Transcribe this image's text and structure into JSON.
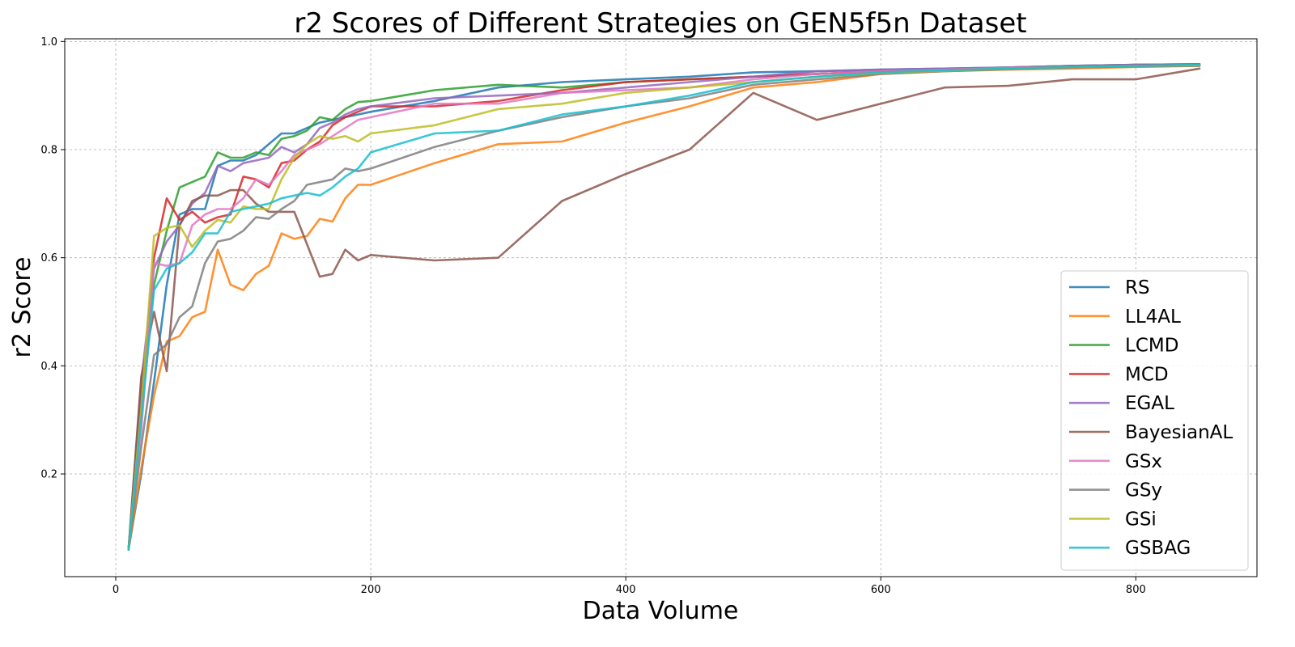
{
  "chart_data": {
    "type": "line",
    "title": "r2 Scores of Different Strategies on GEN5f5n Dataset",
    "xlabel": "Data Volume",
    "ylabel": "r2 Score",
    "xlim": [
      -40,
      895
    ],
    "ylim": [
      0.01,
      1.005
    ],
    "xticks": [
      0,
      200,
      400,
      600,
      800
    ],
    "yticks": [
      0.2,
      0.4,
      0.6,
      0.8,
      1.0
    ],
    "xtick_labels": [
      "0",
      "200",
      "400",
      "600",
      "800"
    ],
    "ytick_labels": [
      "0.2",
      "0.4",
      "0.6",
      "0.8",
      "1.0"
    ],
    "grid": true,
    "legend_position": "bottom-right",
    "x": [
      10,
      20,
      30,
      40,
      50,
      60,
      70,
      80,
      90,
      100,
      110,
      120,
      130,
      140,
      150,
      160,
      170,
      180,
      190,
      200,
      250,
      300,
      350,
      400,
      450,
      500,
      550,
      600,
      650,
      700,
      750,
      800,
      850
    ],
    "series": [
      {
        "name": "RS",
        "color": "#1f77b4",
        "values": [
          0.06,
          0.2,
          0.37,
          0.55,
          0.68,
          0.69,
          0.69,
          0.77,
          0.78,
          0.78,
          0.79,
          0.81,
          0.83,
          0.83,
          0.84,
          0.85,
          0.855,
          0.86,
          0.865,
          0.87,
          0.89,
          0.915,
          0.925,
          0.93,
          0.935,
          0.943,
          0.945,
          0.948,
          0.95,
          0.952,
          0.955,
          0.957,
          0.958
        ]
      },
      {
        "name": "LL4AL",
        "color": "#ff7f0e",
        "values": [
          0.06,
          0.21,
          0.345,
          0.445,
          0.455,
          0.49,
          0.5,
          0.615,
          0.55,
          0.54,
          0.57,
          0.585,
          0.645,
          0.635,
          0.64,
          0.672,
          0.667,
          0.71,
          0.735,
          0.735,
          0.775,
          0.81,
          0.815,
          0.85,
          0.88,
          0.915,
          0.925,
          0.94,
          0.945,
          0.948,
          0.95,
          0.953,
          0.955
        ]
      },
      {
        "name": "LCMD",
        "color": "#2ca02c",
        "values": [
          0.06,
          0.35,
          0.55,
          0.65,
          0.73,
          0.74,
          0.75,
          0.795,
          0.785,
          0.785,
          0.795,
          0.79,
          0.82,
          0.825,
          0.835,
          0.86,
          0.855,
          0.875,
          0.888,
          0.89,
          0.91,
          0.92,
          0.915,
          0.925,
          0.93,
          0.935,
          0.94,
          0.945,
          0.948,
          0.952,
          0.955,
          0.957,
          0.958
        ]
      },
      {
        "name": "MCD",
        "color": "#d62728",
        "values": [
          0.06,
          0.33,
          0.6,
          0.71,
          0.67,
          0.685,
          0.665,
          0.675,
          0.68,
          0.75,
          0.745,
          0.73,
          0.775,
          0.78,
          0.8,
          0.815,
          0.845,
          0.86,
          0.87,
          0.88,
          0.88,
          0.89,
          0.91,
          0.925,
          0.93,
          0.935,
          0.94,
          0.945,
          0.948,
          0.951,
          0.954,
          0.956,
          0.957
        ]
      },
      {
        "name": "EGAL",
        "color": "#9467bd",
        "values": [
          0.06,
          0.37,
          0.58,
          0.63,
          0.66,
          0.7,
          0.72,
          0.77,
          0.76,
          0.775,
          0.78,
          0.785,
          0.805,
          0.795,
          0.81,
          0.84,
          0.85,
          0.865,
          0.875,
          0.88,
          0.895,
          0.9,
          0.905,
          0.915,
          0.925,
          0.935,
          0.945,
          0.948,
          0.95,
          0.952,
          0.955,
          0.957,
          0.958
        ]
      },
      {
        "name": "BayesianAL",
        "color": "#8c564b",
        "values": [
          0.06,
          0.38,
          0.5,
          0.39,
          0.66,
          0.705,
          0.715,
          0.715,
          0.725,
          0.725,
          0.7,
          0.685,
          0.685,
          0.685,
          0.625,
          0.565,
          0.57,
          0.615,
          0.595,
          0.605,
          0.595,
          0.6,
          0.705,
          0.755,
          0.8,
          0.905,
          0.855,
          0.885,
          0.915,
          0.918,
          0.93,
          0.93,
          0.95
        ]
      },
      {
        "name": "GSx",
        "color": "#e377c2",
        "values": [
          0.06,
          0.28,
          0.59,
          0.585,
          0.59,
          0.66,
          0.68,
          0.69,
          0.69,
          0.71,
          0.745,
          0.735,
          0.76,
          0.79,
          0.8,
          0.81,
          0.825,
          0.84,
          0.855,
          0.86,
          0.885,
          0.885,
          0.905,
          0.91,
          0.915,
          0.93,
          0.94,
          0.945,
          0.948,
          0.951,
          0.953,
          0.955,
          0.956
        ]
      },
      {
        "name": "GSy",
        "color": "#7f7f7f",
        "values": [
          0.06,
          0.25,
          0.42,
          0.44,
          0.49,
          0.51,
          0.59,
          0.63,
          0.635,
          0.65,
          0.675,
          0.672,
          0.69,
          0.705,
          0.735,
          0.74,
          0.745,
          0.765,
          0.76,
          0.765,
          0.805,
          0.835,
          0.86,
          0.88,
          0.895,
          0.92,
          0.93,
          0.94,
          0.945,
          0.949,
          0.952,
          0.954,
          0.955
        ]
      },
      {
        "name": "GSi",
        "color": "#bcbd22",
        "values": [
          0.06,
          0.32,
          0.64,
          0.655,
          0.66,
          0.62,
          0.65,
          0.67,
          0.665,
          0.695,
          0.69,
          0.69,
          0.745,
          0.785,
          0.81,
          0.825,
          0.82,
          0.825,
          0.815,
          0.83,
          0.845,
          0.875,
          0.885,
          0.905,
          0.915,
          0.925,
          0.935,
          0.942,
          0.946,
          0.95,
          0.953,
          0.955,
          0.956
        ]
      },
      {
        "name": "GSBAG",
        "color": "#17becf",
        "values": [
          0.06,
          0.3,
          0.54,
          0.58,
          0.59,
          0.61,
          0.645,
          0.645,
          0.685,
          0.69,
          0.695,
          0.7,
          0.71,
          0.715,
          0.72,
          0.715,
          0.73,
          0.75,
          0.765,
          0.795,
          0.83,
          0.835,
          0.865,
          0.88,
          0.9,
          0.925,
          0.935,
          0.943,
          0.947,
          0.95,
          0.953,
          0.955,
          0.957
        ]
      }
    ]
  }
}
